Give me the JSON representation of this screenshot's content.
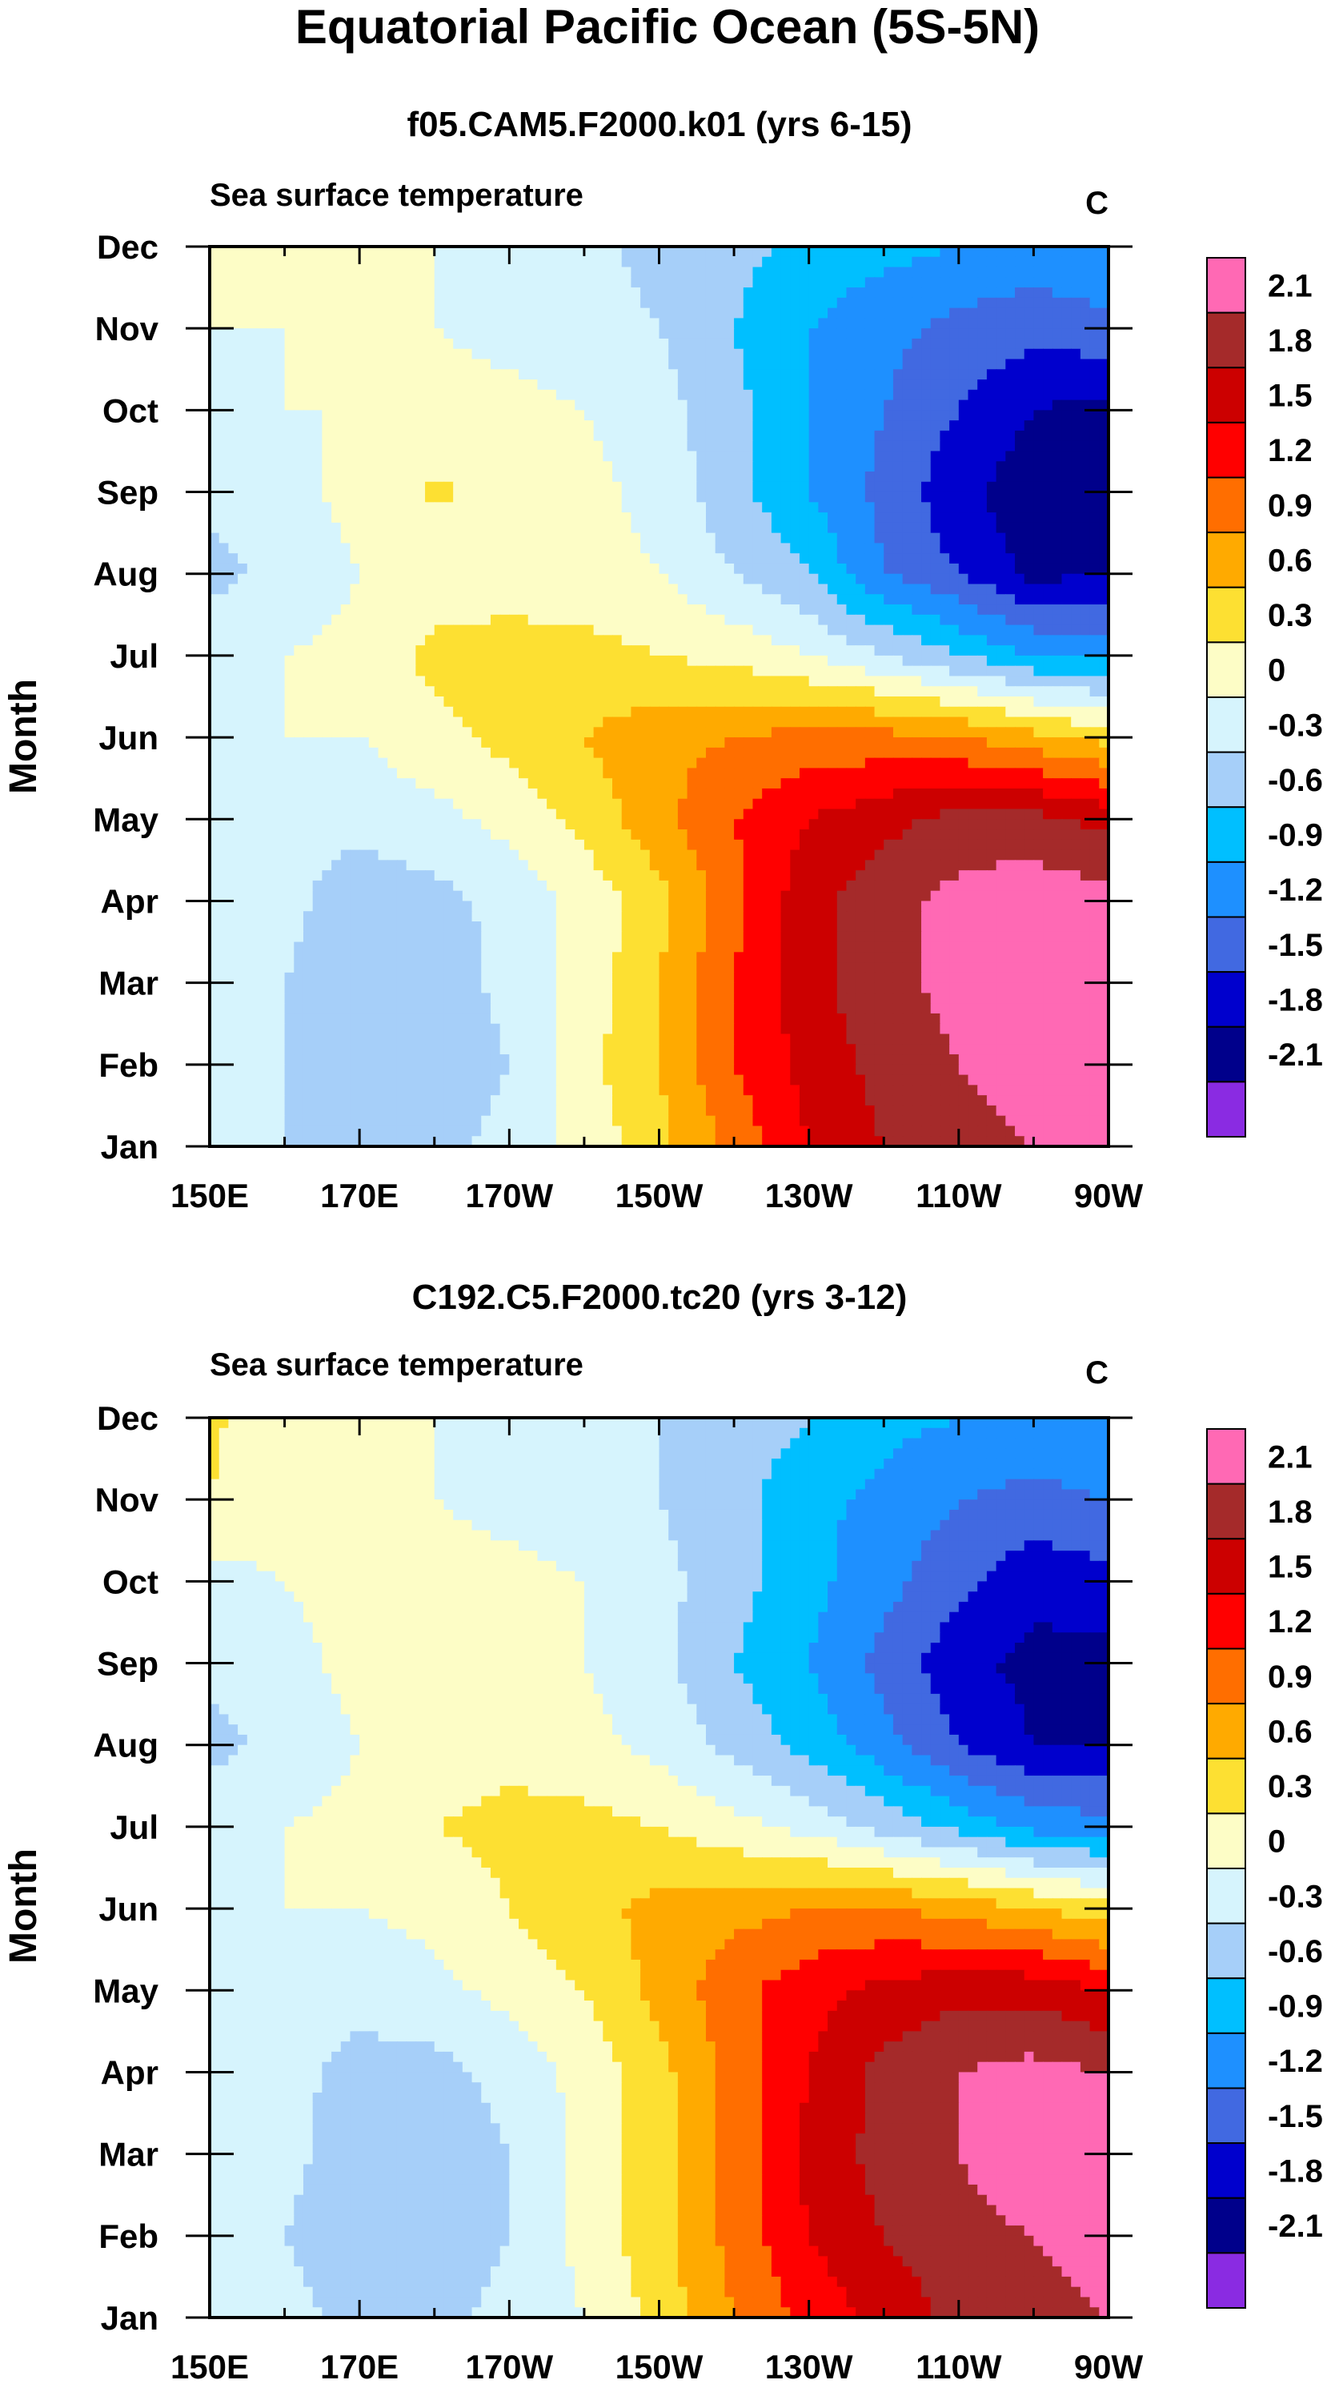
{
  "figure": {
    "title": "Equatorial Pacific Ocean (5S-5N)"
  },
  "colors": {
    "levels": [
      -2.1,
      -1.8,
      -1.5,
      -1.2,
      -0.9,
      -0.6,
      -0.3,
      0,
      0.3,
      0.6,
      0.9,
      1.2,
      1.5,
      1.8,
      2.1
    ],
    "fills": [
      "#8a2be2",
      "#00008b",
      "#0000cd",
      "#4169e1",
      "#1e90ff",
      "#00bfff",
      "#a6cff9",
      "#d6f4fd",
      "#fdfdc6",
      "#fde032",
      "#ffaa00",
      "#ff6e00",
      "#ff0000",
      "#cc0000",
      "#a52a2a",
      "#ff69b4"
    ]
  },
  "chart_data": [
    {
      "type": "heatmap",
      "title": "f05.CAM5.F2000.k01 (yrs 6-15)",
      "subtitle": "Sea surface temperature",
      "units": "C",
      "ylabel": "Month",
      "xlabel": "",
      "x": [
        "150E",
        "170E",
        "170W",
        "150W",
        "130W",
        "110W",
        "90W"
      ],
      "y": [
        "Jan",
        "Feb",
        "Mar",
        "Apr",
        "May",
        "Jun",
        "Jul",
        "Aug",
        "Sep",
        "Oct",
        "Nov",
        "Dec"
      ],
      "x_range_deg_east": [
        150,
        270
      ],
      "legend_labels": [
        "2.1",
        "1.8",
        "1.5",
        "1.2",
        "0.9",
        "0.6",
        "0.3",
        "0",
        "-0.3",
        "-0.6",
        "-0.9",
        "-1.2",
        "-1.5",
        "-1.8",
        "-2.1"
      ],
      "grid": [
        [
          -0.1,
          -0.3,
          -0.5,
          -0.4,
          -0.2,
          0.1,
          0.5,
          1.0,
          1.5,
          1.8,
          2.0,
          2.1,
          2.2
        ],
        [
          -0.1,
          -0.3,
          -0.6,
          -0.5,
          -0.3,
          0.2,
          0.6,
          1.2,
          1.6,
          1.9,
          2.1,
          2.2,
          2.3
        ],
        [
          -0.1,
          -0.3,
          -0.6,
          -0.5,
          -0.2,
          0.1,
          0.6,
          1.2,
          1.7,
          2.0,
          2.2,
          2.4,
          2.3
        ],
        [
          0.0,
          -0.2,
          -0.5,
          -0.4,
          -0.2,
          0.1,
          0.5,
          1.1,
          1.7,
          2.0,
          2.2,
          2.3,
          2.2
        ],
        [
          0.0,
          -0.2,
          -0.2,
          -0.1,
          0.1,
          0.4,
          0.8,
          1.2,
          1.5,
          1.7,
          1.9,
          1.9,
          1.7
        ],
        [
          0.0,
          0.0,
          0.0,
          0.2,
          0.4,
          0.6,
          0.8,
          0.9,
          1.0,
          1.0,
          0.9,
          0.7,
          0.5
        ],
        [
          -0.1,
          0.0,
          0.1,
          0.4,
          0.4,
          0.4,
          0.3,
          0.2,
          0.0,
          -0.3,
          -0.6,
          -0.9,
          -1.0
        ],
        [
          -0.4,
          -0.2,
          0.0,
          0.1,
          0.2,
          0.1,
          0.0,
          -0.3,
          -0.6,
          -1.2,
          -1.5,
          -1.9,
          -1.8
        ],
        [
          -0.2,
          -0.1,
          0.1,
          0.35,
          0.2,
          0.1,
          -0.1,
          -0.5,
          -0.9,
          -1.3,
          -1.7,
          -2.0,
          -1.9
        ],
        [
          -0.1,
          0.0,
          0.0,
          0.1,
          0.1,
          0.0,
          -0.2,
          -0.5,
          -0.9,
          -1.2,
          -1.5,
          -1.8,
          -1.9
        ],
        [
          0.0,
          0.0,
          0.0,
          0.0,
          -0.1,
          -0.2,
          -0.3,
          -0.6,
          -0.9,
          -1.1,
          -1.3,
          -1.4,
          -1.3
        ],
        [
          0.1,
          0.1,
          0.1,
          0.0,
          -0.1,
          -0.2,
          -0.4,
          -0.5,
          -0.7,
          -0.8,
          -0.9,
          -1.0,
          -0.9
        ]
      ]
    },
    {
      "type": "heatmap",
      "title": "C192.C5.F2000.tc20 (yrs 3-12)",
      "subtitle": "Sea surface temperature",
      "units": "C",
      "ylabel": "Month",
      "xlabel": "",
      "x": [
        "150E",
        "170E",
        "170W",
        "150W",
        "130W",
        "110W",
        "90W"
      ],
      "y": [
        "Jan",
        "Feb",
        "Mar",
        "Apr",
        "May",
        "Jun",
        "Jul",
        "Aug",
        "Sep",
        "Oct",
        "Nov",
        "Dec"
      ],
      "x_range_deg_east": [
        150,
        270
      ],
      "legend_labels": [
        "2.1",
        "1.8",
        "1.5",
        "1.2",
        "0.9",
        "0.6",
        "0.3",
        "0",
        "-0.3",
        "-0.6",
        "-0.9",
        "-1.2",
        "-1.5",
        "-1.8",
        "-2.1"
      ],
      "grid": [
        [
          -0.1,
          -0.2,
          -0.4,
          -0.4,
          -0.2,
          0.0,
          0.4,
          0.9,
          1.3,
          1.6,
          1.9,
          2.0,
          2.1
        ],
        [
          -0.1,
          -0.3,
          -0.5,
          -0.5,
          -0.3,
          0.1,
          0.5,
          1.0,
          1.5,
          1.8,
          2.0,
          2.1,
          2.2
        ],
        [
          -0.1,
          -0.2,
          -0.5,
          -0.5,
          -0.3,
          0.1,
          0.5,
          1.0,
          1.6,
          1.9,
          2.1,
          2.3,
          2.3
        ],
        [
          0.0,
          -0.2,
          -0.4,
          -0.4,
          -0.2,
          0.1,
          0.5,
          1.0,
          1.5,
          1.9,
          2.1,
          2.2,
          2.1
        ],
        [
          0.0,
          -0.1,
          -0.2,
          -0.1,
          0.1,
          0.3,
          0.7,
          1.1,
          1.4,
          1.6,
          1.7,
          1.7,
          1.5
        ],
        [
          0.0,
          0.0,
          0.0,
          0.1,
          0.3,
          0.5,
          0.7,
          0.8,
          0.9,
          0.9,
          0.8,
          0.6,
          0.4
        ],
        [
          -0.1,
          0.0,
          0.1,
          0.3,
          0.4,
          0.4,
          0.3,
          0.1,
          -0.1,
          -0.4,
          -0.7,
          -1.0,
          -1.1
        ],
        [
          -0.4,
          -0.2,
          0.0,
          0.1,
          0.2,
          0.1,
          -0.1,
          -0.4,
          -0.7,
          -1.1,
          -1.5,
          -1.8,
          -1.8
        ],
        [
          -0.2,
          -0.1,
          0.1,
          0.2,
          0.2,
          0.0,
          -0.2,
          -0.6,
          -0.9,
          -1.3,
          -1.7,
          -1.9,
          -1.9
        ],
        [
          -0.1,
          0.0,
          0.1,
          0.1,
          0.1,
          0.0,
          -0.2,
          -0.5,
          -0.8,
          -1.1,
          -1.4,
          -1.7,
          -1.6
        ],
        [
          0.3,
          0.1,
          0.0,
          0.0,
          -0.1,
          -0.2,
          -0.3,
          -0.5,
          -0.8,
          -1.0,
          -1.2,
          -1.3,
          -1.2
        ],
        [
          0.35,
          0.1,
          0.0,
          0.0,
          -0.1,
          -0.2,
          -0.3,
          -0.4,
          -0.6,
          -0.8,
          -0.9,
          -1.0,
          -0.9
        ]
      ]
    }
  ]
}
